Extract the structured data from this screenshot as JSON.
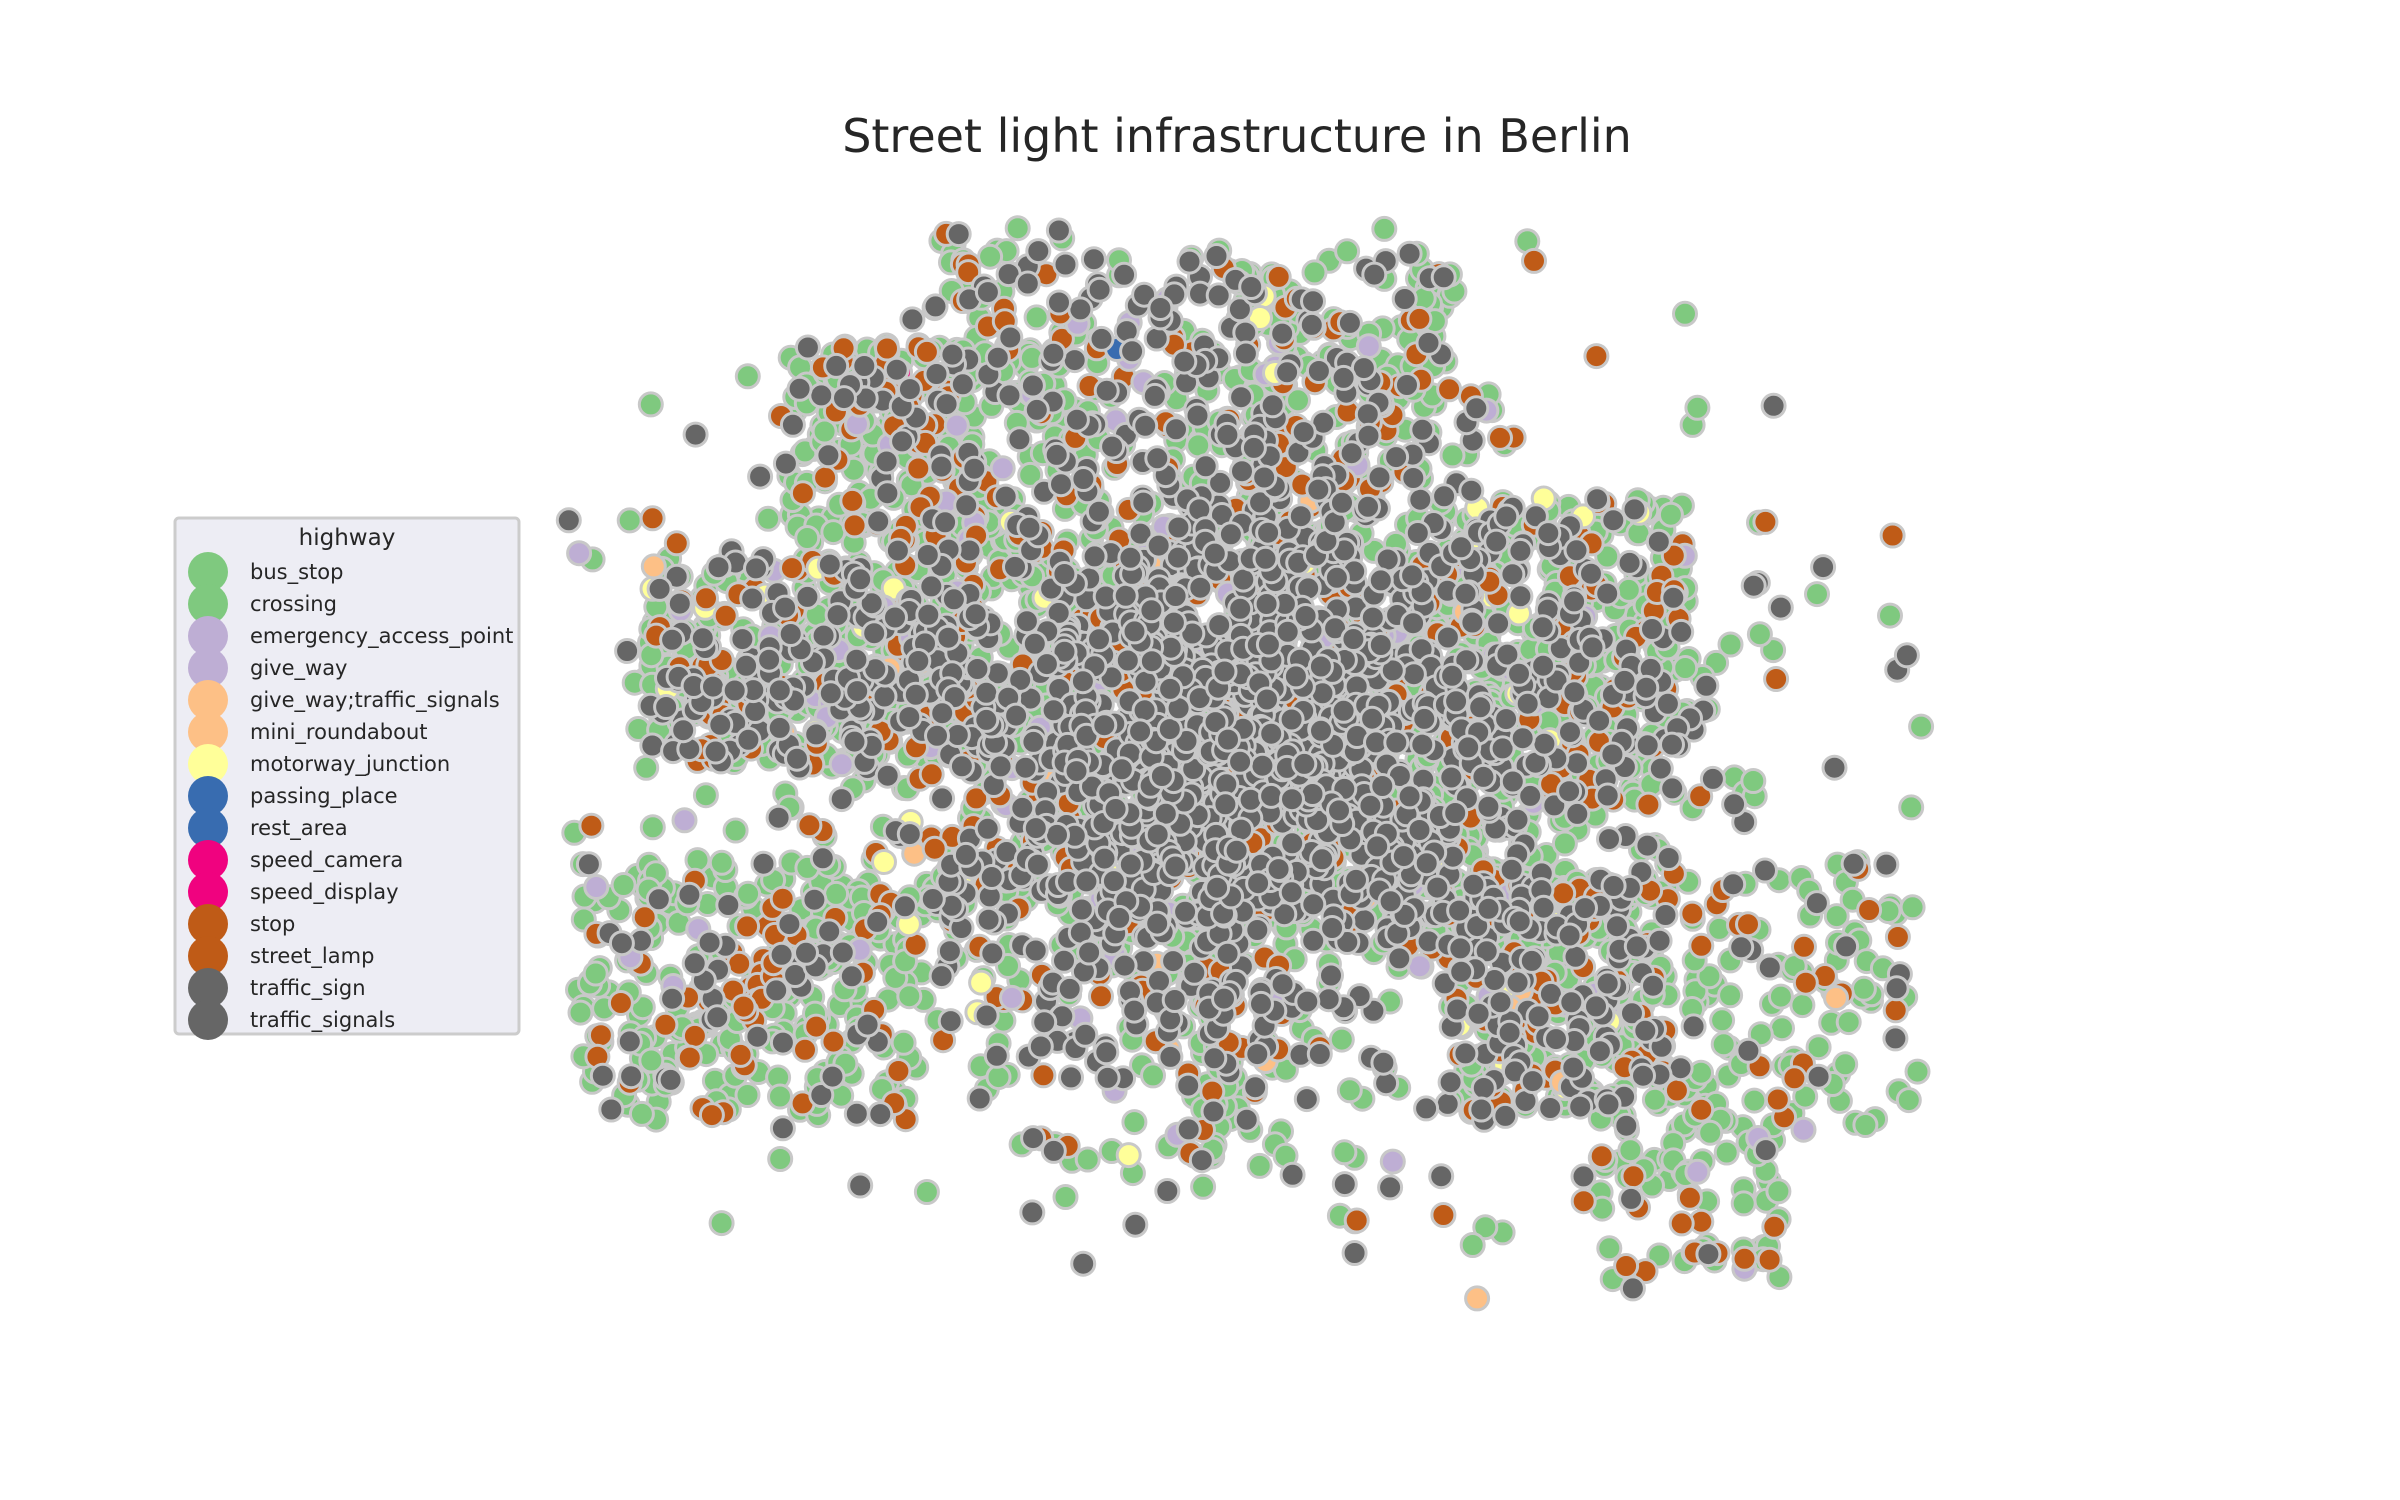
{
  "chart_data": {
    "type": "scatter",
    "title": "Street light infrastructure in Berlin",
    "xlabel": "",
    "ylabel": "",
    "grid": false,
    "axes_visible": false,
    "legend": {
      "title": "highway",
      "placement": "left-center",
      "entries": [
        {
          "name": "bus_stop",
          "color": "#7fc97f"
        },
        {
          "name": "crossing",
          "color": "#7fc97f"
        },
        {
          "name": "emergency_access_point",
          "color": "#beaed4"
        },
        {
          "name": "give_way",
          "color": "#beaed4"
        },
        {
          "name": "give_way;traffic_signals",
          "color": "#fdc086"
        },
        {
          "name": "mini_roundabout",
          "color": "#fdc086"
        },
        {
          "name": "motorway_junction",
          "color": "#ffff99"
        },
        {
          "name": "passing_place",
          "color": "#386cb0"
        },
        {
          "name": "rest_area",
          "color": "#386cb0"
        },
        {
          "name": "speed_camera",
          "color": "#f0027f"
        },
        {
          "name": "speed_display",
          "color": "#f0027f"
        },
        {
          "name": "stop",
          "color": "#bf5b17"
        },
        {
          "name": "street_lamp",
          "color": "#bf5b17"
        },
        {
          "name": "traffic_sign",
          "color": "#666666"
        },
        {
          "name": "traffic_signals",
          "color": "#666666"
        }
      ]
    },
    "marker_edge_color": "#c8c8c8",
    "xlim": [
      13.08,
      13.77
    ],
    "ylim": [
      52.33,
      52.68
    ]
  }
}
